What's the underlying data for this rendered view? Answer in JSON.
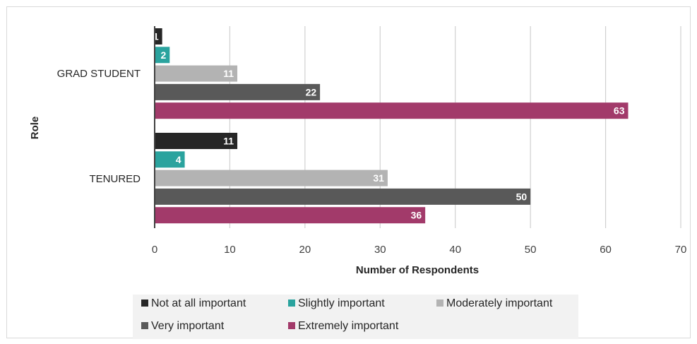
{
  "chart_data": {
    "type": "bar",
    "orientation": "horizontal",
    "title": "",
    "xlabel": "Number of Respondents",
    "ylabel": "Role",
    "xlim": [
      0,
      70
    ],
    "xticks": [
      0,
      10,
      20,
      30,
      40,
      50,
      60,
      70
    ],
    "grid": "vertical",
    "legend_position": "bottom",
    "categories": [
      "GRAD STUDENT",
      "TENURED"
    ],
    "series": [
      {
        "name": "Not at all important",
        "color": "#262626",
        "values": [
          1,
          11
        ]
      },
      {
        "name": "Slightly important",
        "color": "#2aa39e",
        "values": [
          2,
          4
        ]
      },
      {
        "name": "Moderately important",
        "color": "#b3b3b3",
        "values": [
          11,
          31
        ]
      },
      {
        "name": "Very important",
        "color": "#595959",
        "values": [
          22,
          50
        ]
      },
      {
        "name": "Extremely important",
        "color": "#a23a6a",
        "values": [
          63,
          36
        ]
      }
    ]
  }
}
